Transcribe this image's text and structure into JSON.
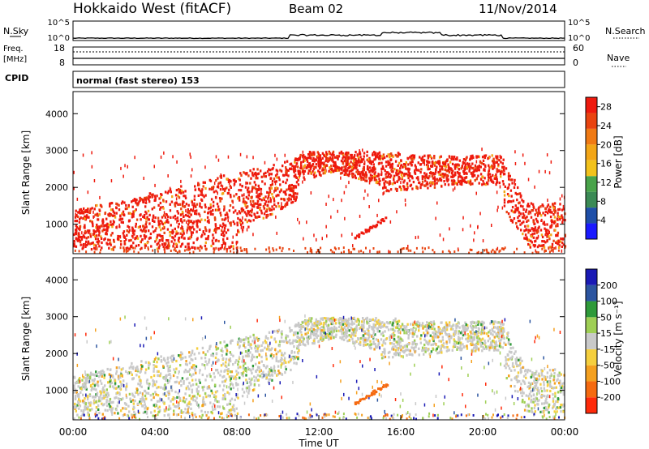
{
  "header": {
    "station": "Hokkaido West (fitACF)",
    "beam": "Beam 02",
    "date": "11/Nov/2014"
  },
  "strips": {
    "nsky_label": "N.Sky",
    "nsky_ticks": [
      "10^5",
      "10^0"
    ],
    "nsearch_label": "N.Search",
    "nsearch_ticks": [
      "10^5",
      "10^0"
    ],
    "freq_label": "Freq.",
    "freq_unit": "[MHz]",
    "freq_ticks": [
      "18",
      "8"
    ],
    "nave_label": "Nave",
    "nave_ticks": [
      "60",
      "0"
    ],
    "cpid_label": "CPID",
    "cpid_text": "normal (fast stereo) 153"
  },
  "colors": {
    "power": [
      "#1a1aff",
      "#1f4fa8",
      "#3b8a55",
      "#49a34a",
      "#f2c21c",
      "#f3a617",
      "#f07a14",
      "#e94410",
      "#ee1a0e"
    ],
    "velocity": [
      "#ff2a0a",
      "#f56a10",
      "#f4a020",
      "#f5cf3e",
      "#c9c9c9",
      "#9fcf55",
      "#2f9a3a",
      "#2c55a0",
      "#1a1ab5"
    ]
  },
  "chart_data": [
    {
      "type": "heatmap",
      "name": "power",
      "ylabel": "Slant Range [km]",
      "yticks": [
        "1000",
        "2000",
        "3000",
        "4000"
      ],
      "ylim": [
        200,
        4600
      ],
      "xlim": [
        0,
        24
      ],
      "colorbar_label": "Power [dB]",
      "colorbar_ticks": [
        "4",
        "8",
        "12",
        "16",
        "20",
        "24",
        "28"
      ],
      "colorbar_range": [
        0,
        30
      ]
    },
    {
      "type": "heatmap",
      "name": "velocity",
      "ylabel": "Slant Range [km]",
      "yticks": [
        "1000",
        "2000",
        "3000",
        "4000"
      ],
      "ylim": [
        200,
        4600
      ],
      "xlim": [
        0,
        24
      ],
      "colorbar_label": "Velocity [m s⁻¹]",
      "colorbar_ticks": [
        "-200",
        "-100",
        "-50",
        "-15",
        "15",
        "50",
        "100",
        "200"
      ]
    }
  ],
  "xaxis": {
    "label": "Time UT",
    "ticks": [
      "00:00",
      "04:00",
      "08:00",
      "12:00",
      "16:00",
      "20:00",
      "00:00"
    ]
  }
}
